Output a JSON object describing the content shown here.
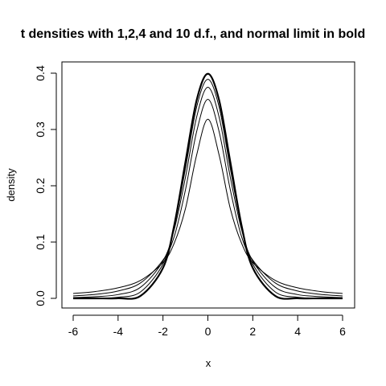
{
  "chart_data": {
    "type": "line",
    "title": "t densities with 1,2,4 and 10 d.f., and normal limit in bold",
    "xlabel": "x",
    "ylabel": "density",
    "xlim": [
      -6,
      6
    ],
    "ylim": [
      0,
      0.4
    ],
    "x_ticks": [
      "-6",
      "-4",
      "-2",
      "0",
      "2",
      "4",
      "6"
    ],
    "y_ticks": [
      "0.0",
      "0.1",
      "0.2",
      "0.3",
      "0.4"
    ],
    "grid": false,
    "x": [
      -6,
      -5,
      -4,
      -3,
      -2,
      -1.5,
      -1,
      -0.5,
      0,
      0.5,
      1,
      1.5,
      2,
      3,
      4,
      5,
      6
    ],
    "series": [
      {
        "values": [
          0.0086,
          0.0122,
          0.0187,
          0.0318,
          0.0637,
          0.0979,
          0.1592,
          0.2546,
          0.3183,
          0.2546,
          0.1592,
          0.0979,
          0.0637,
          0.0318,
          0.0187,
          0.0122,
          0.0086
        ],
        "bold": false
      },
      {
        "values": [
          0.0043,
          0.0071,
          0.0131,
          0.0274,
          0.068,
          0.1097,
          0.1925,
          0.2962,
          0.3536,
          0.2962,
          0.1925,
          0.1097,
          0.068,
          0.0274,
          0.0131,
          0.0071,
          0.0043
        ],
        "bold": false
      },
      {
        "values": [
          0.0014,
          0.003,
          0.0067,
          0.0197,
          0.0663,
          0.1221,
          0.2147,
          0.3222,
          0.375,
          0.3222,
          0.2147,
          0.1221,
          0.0663,
          0.0197,
          0.0067,
          0.003,
          0.0014
        ],
        "bold": false
      },
      {
        "values": [
          0.0001,
          0.0004,
          0.002,
          0.0114,
          0.0611,
          0.1274,
          0.2304,
          0.34,
          0.3891,
          0.34,
          0.2304,
          0.1274,
          0.0611,
          0.0114,
          0.002,
          0.0004,
          0.0001
        ],
        "bold": false
      },
      {
        "values": [
          0.0,
          0.0,
          0.0001,
          0.0044,
          0.054,
          0.1295,
          0.242,
          0.3521,
          0.3989,
          0.3521,
          0.242,
          0.1295,
          0.054,
          0.0044,
          0.0001,
          0.0,
          0.0
        ],
        "bold": true
      }
    ]
  }
}
